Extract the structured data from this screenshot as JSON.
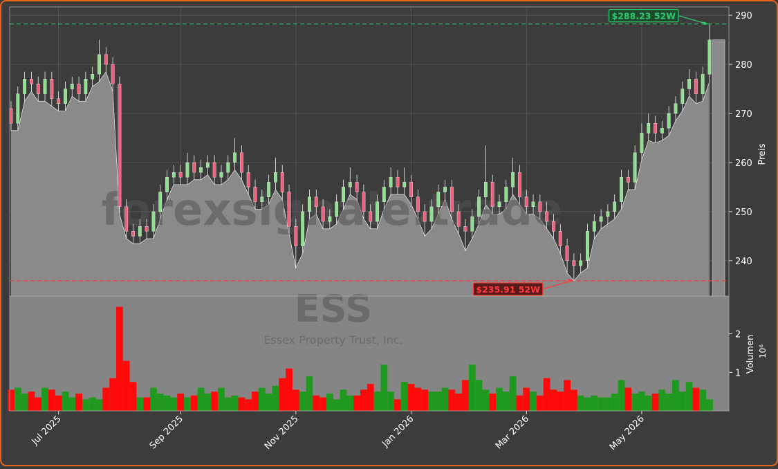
{
  "chart_data": {
    "type": "candlestick",
    "watermark": "forexsignale.trade",
    "symbol": "ESS",
    "company": "Essex Property Trust, Inc.",
    "ylabel": "Preis",
    "ylim": [
      232.8,
      291.7
    ],
    "yticks": [
      240,
      250,
      260,
      270,
      280,
      290
    ],
    "grid": true,
    "up_color": "#8ee08e",
    "down_color": "#f0607a",
    "area_color": "#8a8a8a",
    "categories": [
      null,
      null,
      null,
      null,
      null,
      null,
      null,
      "Jul 2025",
      null,
      null,
      null,
      null,
      null,
      null,
      null,
      null,
      null,
      null,
      null,
      null,
      null,
      null,
      null,
      null,
      null,
      "Sep 2025",
      null,
      null,
      null,
      null,
      null,
      null,
      null,
      null,
      null,
      null,
      null,
      null,
      null,
      null,
      null,
      null,
      "Nov 2025",
      null,
      null,
      null,
      null,
      null,
      null,
      null,
      null,
      null,
      null,
      null,
      null,
      null,
      null,
      null,
      null,
      "Jan 2026",
      null,
      null,
      null,
      null,
      null,
      null,
      null,
      null,
      null,
      null,
      null,
      null,
      null,
      null,
      null,
      null,
      "Mar 2026",
      null,
      null,
      null,
      null,
      null,
      null,
      null,
      null,
      null,
      null,
      null,
      null,
      null,
      null,
      null,
      null,
      "May 2026",
      null,
      null,
      null,
      null,
      null,
      null,
      null,
      null,
      null,
      null
    ],
    "open": [
      271,
      268,
      274,
      277,
      276,
      274,
      277,
      273,
      272,
      275,
      276,
      274,
      277,
      278,
      282,
      280,
      276,
      251,
      246,
      245,
      247,
      246,
      250,
      254,
      257,
      258,
      257,
      260,
      258,
      259,
      260,
      257,
      258,
      260,
      262,
      258,
      255,
      252,
      253,
      256,
      258,
      254,
      247,
      243,
      250,
      253,
      251,
      248,
      249,
      252,
      255,
      256,
      254,
      250,
      248,
      252,
      255,
      257,
      255,
      256,
      253,
      250,
      248,
      251,
      254,
      255,
      250,
      247,
      246,
      249,
      253,
      256,
      251,
      252,
      255,
      258,
      253,
      251,
      252,
      250,
      248,
      246,
      243,
      240,
      239,
      240,
      246,
      248,
      249,
      250,
      252,
      257,
      256,
      262,
      266,
      268,
      266,
      267,
      270,
      272,
      275,
      277,
      274,
      278
    ],
    "high": [
      272.5,
      275.5,
      278.5,
      278.5,
      277.5,
      278.5,
      278.5,
      274.5,
      276.5,
      277.5,
      277.5,
      278.5,
      279.5,
      285,
      283.5,
      281.5,
      277.5,
      252.5,
      247.5,
      248.5,
      248.5,
      251.5,
      255.5,
      258.5,
      259.5,
      259.5,
      262,
      261.5,
      260.5,
      261.5,
      261.5,
      259.5,
      261.5,
      265,
      263.5,
      259.5,
      256.5,
      254.5,
      257.5,
      261,
      259.5,
      255.5,
      248.5,
      251.5,
      254.5,
      254.5,
      252.5,
      250.5,
      253.5,
      256.5,
      259,
      257.5,
      255.5,
      251.5,
      253.5,
      256.5,
      259,
      258.5,
      259,
      257.5,
      254.5,
      251.5,
      252.5,
      255.5,
      256.5,
      256.5,
      251.5,
      248.5,
      250.5,
      254.5,
      263.5,
      257.5,
      253.5,
      256.5,
      261,
      259.5,
      254.5,
      253.5,
      253.5,
      252,
      249.5,
      247.5,
      244.5,
      241.5,
      241.5,
      247.5,
      249.5,
      250.5,
      251.5,
      253.5,
      258.5,
      258.5,
      263.5,
      268,
      270,
      269.5,
      268.5,
      271.5,
      273.5,
      276.5,
      279,
      278.5,
      279.5,
      288.23
    ],
    "low": [
      266.5,
      266.5,
      272.5,
      274.5,
      272.5,
      272.5,
      271.5,
      270.5,
      270.5,
      273.5,
      272.5,
      272.5,
      275.5,
      276.5,
      278.5,
      274.5,
      249.5,
      244.5,
      243.5,
      243.5,
      244.5,
      244.5,
      248.5,
      252.5,
      255.5,
      255.5,
      255.5,
      256.5,
      256.5,
      257.5,
      255.5,
      255.5,
      256.5,
      258.5,
      256.5,
      253.5,
      250.5,
      250.5,
      251.5,
      254.5,
      252.5,
      245.5,
      238.5,
      241.5,
      248.5,
      249.5,
      246.5,
      246.5,
      247.5,
      250.5,
      253.5,
      252.5,
      248.5,
      246.5,
      246.5,
      250.5,
      253.5,
      253.5,
      253.5,
      251.5,
      248.5,
      245,
      246.5,
      249.5,
      252.5,
      248.5,
      245.5,
      242,
      244.5,
      247.5,
      251.5,
      249.5,
      249.5,
      250.5,
      253.5,
      251.5,
      249.5,
      249.5,
      248.5,
      246.5,
      244.5,
      241.5,
      237.5,
      235.91,
      237.5,
      238.5,
      244.5,
      246.5,
      247.5,
      248.5,
      250.5,
      254.5,
      254.5,
      260.5,
      264.5,
      264,
      264.5,
      265.5,
      268.5,
      270.5,
      273.5,
      272,
      272.5,
      276.5
    ],
    "close": [
      268,
      274,
      277,
      276,
      274,
      277,
      273,
      272,
      275,
      276,
      274,
      277,
      278,
      282,
      280,
      276,
      251,
      246,
      245,
      247,
      246,
      250,
      254,
      257,
      258,
      257,
      260,
      258,
      259,
      260,
      257,
      258,
      260,
      262,
      258,
      255,
      252,
      253,
      256,
      258,
      254,
      247,
      243,
      250,
      253,
      251,
      248,
      249,
      252,
      255,
      256,
      254,
      250,
      248,
      252,
      255,
      257,
      255,
      256,
      253,
      250,
      248,
      251,
      254,
      255,
      250,
      247,
      246,
      249,
      253,
      256,
      251,
      252,
      255,
      258,
      253,
      251,
      252,
      250,
      248,
      246,
      243,
      240,
      239,
      240,
      246,
      248,
      249,
      250,
      252,
      257,
      256,
      262,
      266,
      268,
      266,
      267,
      270,
      272,
      275,
      277,
      274,
      278,
      285
    ],
    "volume": {
      "ylabel": "Volumen",
      "offset_label": "10⁶",
      "ylim": [
        0,
        2.98
      ],
      "yticks": [
        1,
        2
      ],
      "up_color": "#1f9a1f",
      "down_color": "#ff0a0a",
      "values": [
        0.55,
        0.6,
        0.45,
        0.5,
        0.35,
        0.6,
        0.55,
        0.4,
        0.5,
        0.35,
        0.45,
        0.3,
        0.35,
        0.3,
        0.6,
        0.85,
        2.7,
        1.3,
        0.75,
        0.35,
        0.35,
        0.6,
        0.45,
        0.4,
        0.35,
        0.45,
        0.35,
        0.4,
        0.6,
        0.45,
        0.5,
        0.6,
        0.35,
        0.4,
        0.35,
        0.3,
        0.5,
        0.6,
        0.45,
        0.65,
        0.85,
        1.1,
        0.55,
        0.5,
        0.9,
        0.4,
        0.35,
        0.45,
        0.3,
        0.55,
        0.4,
        0.4,
        0.55,
        0.7,
        0.5,
        1.2,
        0.5,
        0.3,
        0.75,
        0.7,
        0.6,
        0.55,
        0.5,
        0.5,
        0.6,
        0.55,
        0.45,
        0.8,
        1.2,
        0.8,
        0.55,
        0.45,
        0.6,
        0.5,
        0.9,
        0.4,
        0.6,
        0.5,
        0.4,
        0.85,
        0.55,
        0.5,
        0.8,
        0.55,
        0.4,
        0.35,
        0.4,
        0.35,
        0.35,
        0.45,
        0.8,
        0.6,
        0.45,
        0.5,
        0.4,
        0.45,
        0.55,
        0.45,
        0.8,
        0.5,
        0.75,
        0.6,
        0.55,
        0.3
      ]
    },
    "annotations": [
      {
        "text": "$288.23 52W",
        "value": 288.23,
        "color": "#2ecc71",
        "box_color": "#1d4a2c"
      },
      {
        "text": "$235.91 52W",
        "value": 235.91,
        "color": "#ff3b3b",
        "box_color": "#5a1b1b"
      }
    ]
  }
}
